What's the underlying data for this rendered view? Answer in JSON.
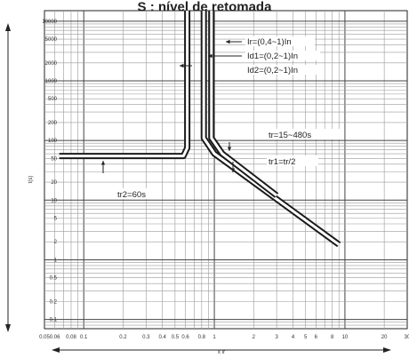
{
  "chart_data": {
    "type": "line",
    "title": "S : nível de retomada",
    "xlabel": "",
    "ylabel": "",
    "x_scale": "log",
    "y_scale": "log",
    "xlim": [
      0.05,
      30
    ],
    "ylim": [
      0.07,
      15000
    ],
    "grid": true,
    "x_ticks": [
      0.05,
      0.06,
      0.08,
      0.1,
      0.2,
      0.3,
      0.4,
      0.5,
      0.6,
      0.8,
      1,
      2,
      3,
      4,
      5,
      6,
      8,
      10,
      20,
      30
    ],
    "x_tick_labels": [
      "0.05",
      "0.06",
      "0.08",
      "0.1",
      "0.2",
      "0.3",
      "0.4",
      "0.5",
      "0.6",
      "0.8",
      "1",
      "2",
      "3",
      "4",
      "5",
      "6",
      "8",
      "10",
      "20",
      "30"
    ],
    "y_ticks": [
      0.1,
      0.2,
      0.5,
      1,
      2,
      5,
      10,
      20,
      50,
      100,
      200,
      500,
      1000,
      2000,
      5000,
      10000
    ],
    "y_tick_labels": [
      "0.1",
      "0.2",
      "0.5",
      "1",
      "2",
      "5",
      "10",
      "20",
      "50",
      "100",
      "200",
      "500",
      "1000",
      "2000",
      "5000",
      "10000"
    ],
    "series": [
      {
        "name": "tr2=60s",
        "x": [
          0.065,
          0.58,
          0.62,
          0.62
        ],
        "y": [
          55,
          55,
          75,
          15000
        ]
      },
      {
        "name": "tr=15~480s",
        "x": [
          0.83,
          0.83,
          1.0,
          9.0
        ],
        "y": [
          15000,
          110,
          60,
          1.8
        ]
      },
      {
        "name": "tr1=tr/2",
        "x": [
          0.95,
          0.95,
          1.15,
          3.0
        ],
        "y": [
          15000,
          110,
          60,
          12
        ]
      }
    ],
    "annotations": [
      {
        "text": "Ir=(0,4~1)In"
      },
      {
        "text": "Id1=(0,2~1)In"
      },
      {
        "text": "Id2=(0,2~1)In"
      },
      {
        "text": "tr=15~480s"
      },
      {
        "text": "tr1=tr/2"
      },
      {
        "text": "tr2=60s"
      }
    ],
    "axis_marks": {
      "y_unit": "t(s)",
      "x_unit": "x Ir"
    }
  }
}
